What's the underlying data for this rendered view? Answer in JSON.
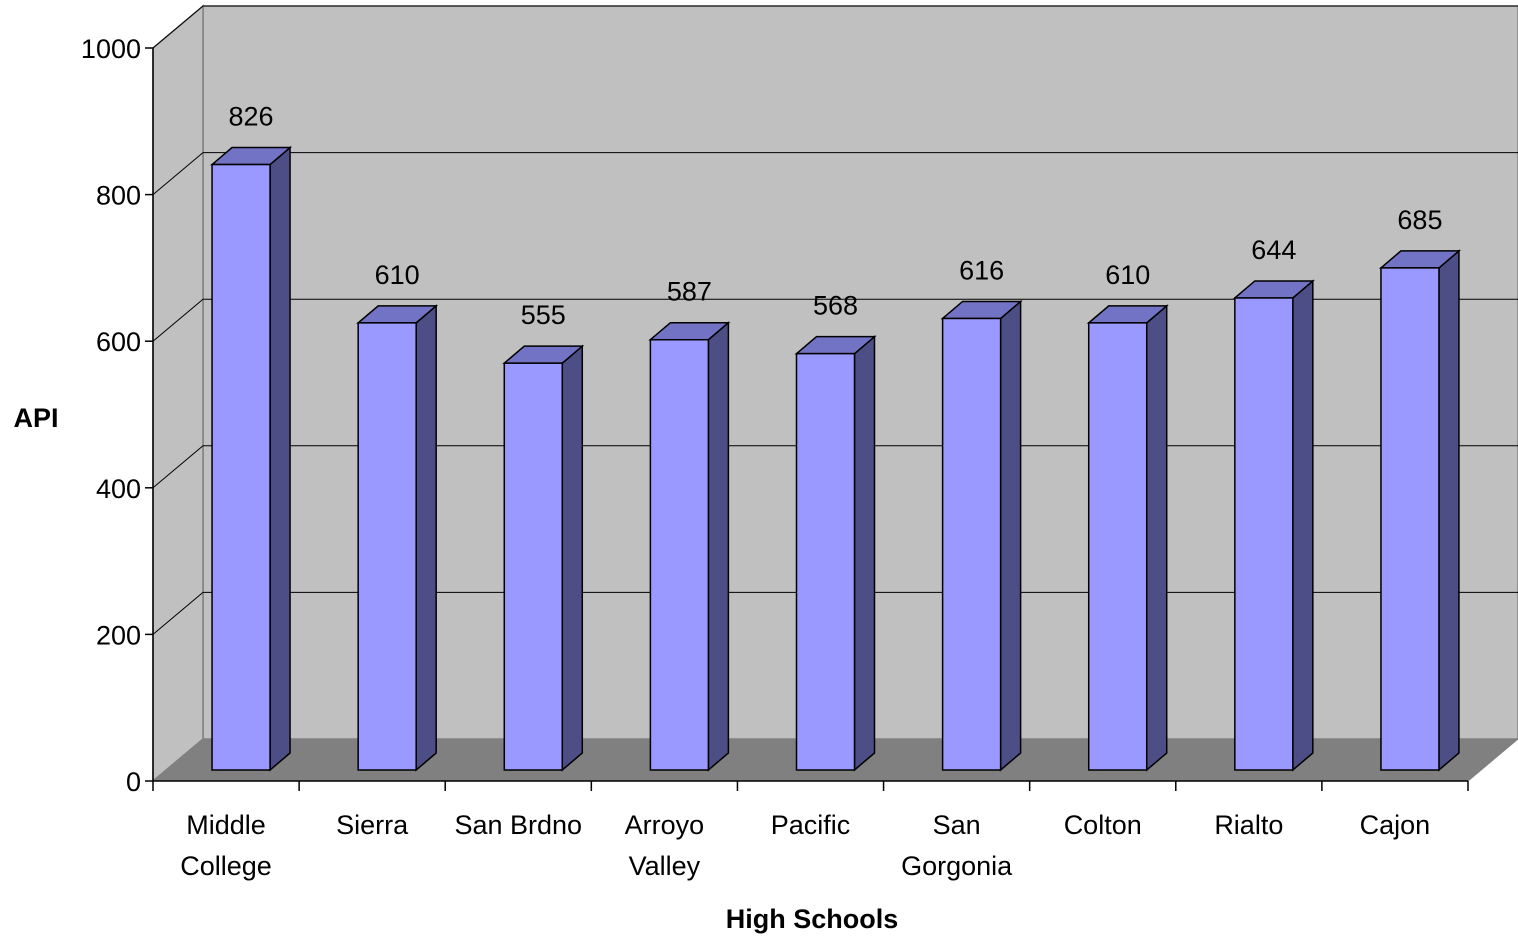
{
  "chart_data": {
    "type": "bar",
    "categories": [
      [
        "Middle",
        "College"
      ],
      [
        "Sierra"
      ],
      [
        "San Brdno"
      ],
      [
        "Arroyo",
        "Valley"
      ],
      [
        "Pacific"
      ],
      [
        "San",
        "Gorgonia"
      ],
      [
        "Colton"
      ],
      [
        "Rialto"
      ],
      [
        "Cajon"
      ]
    ],
    "values": [
      826,
      610,
      555,
      587,
      568,
      616,
      610,
      644,
      685
    ],
    "value_labels": [
      "826",
      "610",
      "555",
      "587",
      "568",
      "616",
      "610",
      "644",
      "685"
    ],
    "xlabel": "High Schools",
    "ylabel": "API",
    "ylim": [
      0,
      1000
    ],
    "yticks": [
      "0",
      "200",
      "400",
      "600",
      "800",
      "1000"
    ],
    "style": "3d-column",
    "grid": true,
    "legend": "none",
    "colors": {
      "bar_front": "#9999ff",
      "bar_side": "#4e4e86",
      "bar_top": "#7373c6",
      "back_wall": "#c0c0c0",
      "side_wall": "#c0c0c0",
      "floor": "#808080"
    }
  }
}
